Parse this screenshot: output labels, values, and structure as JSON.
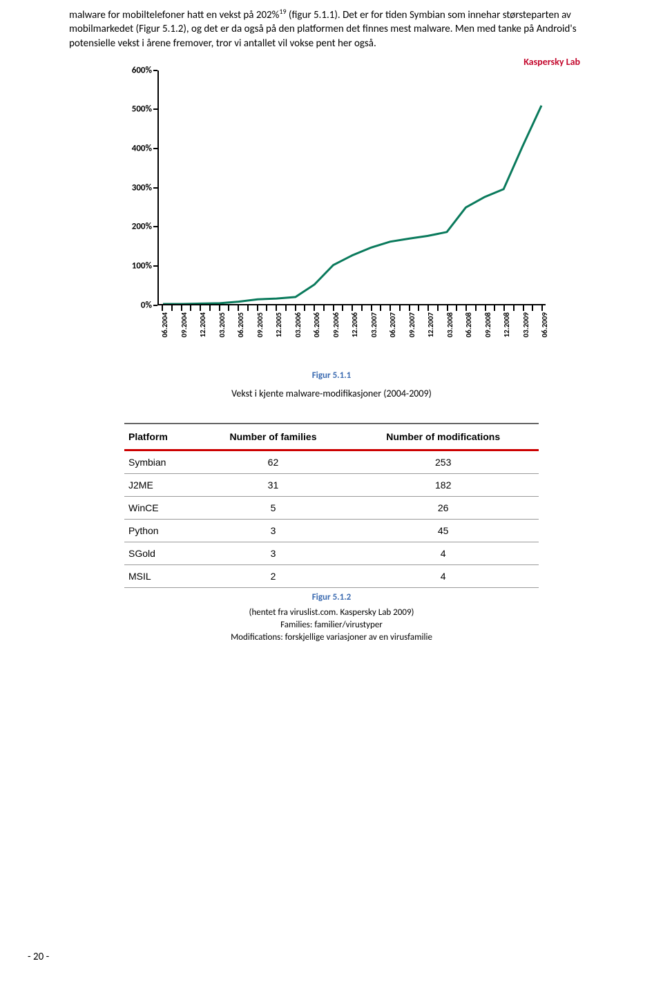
{
  "paragraph": {
    "pre_sup": "malware for mobiltelefoner hatt en vekst på 202%",
    "sup": "19",
    "post_sup": " (figur 5.1.1). Det er for tiden Symbian som innehar størsteparten av mobilmarkedet (Figur 5.1.2), og det er da også på den platformen det finnes mest malware. Men med tanke på Android's potensielle vekst i årene fremover, tror vi antallet vil vokse pent her også."
  },
  "brand_label": "Kaspersky Lab",
  "chart": {
    "type": "line",
    "line_color": "#0a7a5c",
    "y_ticks": [
      0,
      100,
      200,
      300,
      400,
      500,
      600
    ],
    "y_labels": [
      "0%",
      "100%",
      "200%",
      "300%",
      "400%",
      "500%",
      "600%"
    ],
    "ylim_max": 600,
    "x_labels": [
      "06.2004",
      "09.2004",
      "12.2004",
      "03.2005",
      "06.2005",
      "09.2005",
      "12.2005",
      "03.2006",
      "06.2006",
      "09.2006",
      "12.2006",
      "03.2007",
      "06.2007",
      "09.2007",
      "12.2007",
      "03.2008",
      "06.2008",
      "09.2008",
      "12.2008",
      "03.2009",
      "06.2009"
    ],
    "values": [
      0,
      0,
      1,
      2,
      6,
      12,
      14,
      18,
      50,
      100,
      125,
      145,
      160,
      168,
      175,
      185,
      248,
      275,
      295,
      405,
      510
    ],
    "caption": "Figur 5.1.1",
    "subcaption": "Vekst i kjente malware-modifikasjoner (2004-2009)"
  },
  "table": {
    "columns": [
      "Platform",
      "Number of families",
      "Number of modifications"
    ],
    "rows": [
      [
        "Symbian",
        "62",
        "253"
      ],
      [
        "J2ME",
        "31",
        "182"
      ],
      [
        "WinCE",
        "5",
        "26"
      ],
      [
        "Python",
        "3",
        "45"
      ],
      [
        "SGold",
        "3",
        "4"
      ],
      [
        "MSIL",
        "2",
        "4"
      ]
    ],
    "caption": "Figur 5.1.2"
  },
  "credits": {
    "line1": "(hentet fra viruslist.com. Kaspersky Lab 2009)",
    "line2": "Families: familier/virustyper",
    "line3": "Modifications: forskjellige variasjoner av en virusfamilie"
  },
  "page_number": "- 20 -"
}
